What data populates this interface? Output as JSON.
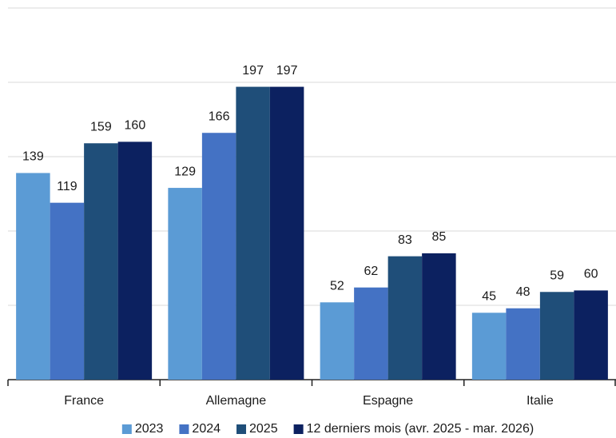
{
  "chart_data": {
    "type": "bar",
    "categories": [
      "France",
      "Allemagne",
      "Espagne",
      "Italie"
    ],
    "series": [
      {
        "name": "2023",
        "color": "#5b9bd5",
        "values": [
          139,
          129,
          52,
          45
        ]
      },
      {
        "name": "2024",
        "color": "#4472c4",
        "values": [
          119,
          166,
          62,
          48
        ]
      },
      {
        "name": "2025",
        "color": "#1f4e79",
        "values": [
          159,
          197,
          83,
          59
        ]
      },
      {
        "name": "12 derniers mois (avr. 2025 - mar. 2026)",
        "color": "#0c2160",
        "values": [
          160,
          197,
          85,
          60
        ]
      }
    ],
    "ylim": [
      0,
      250
    ],
    "yticks": [
      0,
      50,
      100,
      150,
      200,
      250
    ],
    "grid": true,
    "legend": "bottom"
  }
}
